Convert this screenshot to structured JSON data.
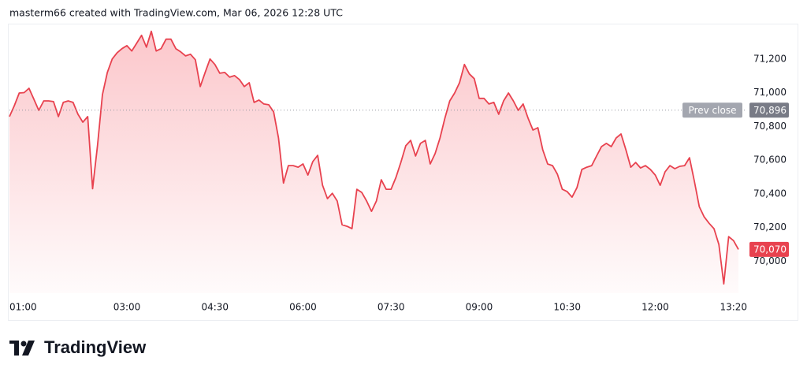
{
  "header": "masterm66 created with TradingView.com, Mar 06, 2026 12:28 UTC",
  "brand": "TradingView",
  "chart_data": {
    "type": "area",
    "color": "#e8424f",
    "x": [
      "01:00",
      "01:05",
      "01:10",
      "01:15",
      "01:20",
      "01:25",
      "01:30",
      "01:35",
      "01:40",
      "01:45",
      "01:50",
      "01:55",
      "02:00",
      "02:05",
      "02:10",
      "02:15",
      "02:20",
      "02:25",
      "02:30",
      "02:35",
      "02:40",
      "02:45",
      "02:50",
      "02:55",
      "03:00",
      "03:05",
      "03:10",
      "03:15",
      "03:20",
      "03:25",
      "03:30",
      "03:35",
      "03:40",
      "03:45",
      "03:50",
      "03:55",
      "04:00",
      "04:05",
      "04:10",
      "04:15",
      "04:20",
      "04:25",
      "04:30",
      "04:35",
      "04:40",
      "04:45",
      "04:50",
      "04:55",
      "05:00",
      "05:05",
      "05:10",
      "05:15",
      "05:20",
      "05:25",
      "05:30",
      "05:35",
      "05:40",
      "05:45",
      "05:50",
      "05:55",
      "06:00",
      "06:05",
      "06:10",
      "06:15",
      "06:20",
      "06:25",
      "06:30",
      "06:35",
      "06:40",
      "06:45",
      "06:50",
      "06:55",
      "07:00",
      "07:05",
      "07:10",
      "07:15",
      "07:20",
      "07:25",
      "07:30",
      "07:35",
      "07:40",
      "07:45",
      "07:50",
      "07:55",
      "08:00",
      "08:05",
      "08:10",
      "08:15",
      "08:20",
      "08:25",
      "08:30",
      "08:35",
      "08:40",
      "08:45",
      "08:50",
      "08:55",
      "09:00",
      "09:05",
      "09:10",
      "09:15",
      "09:20",
      "09:25",
      "09:30",
      "09:35",
      "09:40",
      "09:45",
      "09:50",
      "09:55",
      "10:00",
      "10:05",
      "10:10",
      "10:15",
      "10:20",
      "10:25",
      "10:30",
      "10:35",
      "10:40",
      "10:45",
      "10:50",
      "10:55",
      "11:00",
      "11:05",
      "11:10",
      "11:15",
      "11:20",
      "11:25",
      "11:30",
      "11:35",
      "11:40",
      "11:45",
      "11:50",
      "11:55",
      "12:00",
      "12:05",
      "12:10",
      "12:15",
      "12:20",
      "12:25",
      "12:30",
      "12:35",
      "12:40",
      "12:45",
      "12:50",
      "12:55",
      "13:00",
      "13:05",
      "13:10",
      "13:15",
      "13:20",
      "13:25"
    ],
    "values": [
      70858,
      70923,
      70998,
      71000,
      71026,
      70961,
      70895,
      70951,
      70951,
      70947,
      70858,
      70942,
      70951,
      70942,
      70872,
      70825,
      70858,
      70430,
      70685,
      70989,
      71120,
      71200,
      71237,
      71261,
      71279,
      71247,
      71293,
      71340,
      71270,
      71364,
      71247,
      71261,
      71317,
      71317,
      71261,
      71242,
      71218,
      71228,
      71195,
      71036,
      71120,
      71200,
      71167,
      71115,
      71120,
      71092,
      71101,
      71078,
      71036,
      71059,
      70942,
      70956,
      70933,
      70928,
      70886,
      70731,
      70464,
      70567,
      70567,
      70558,
      70577,
      70511,
      70591,
      70628,
      70450,
      70371,
      70403,
      70357,
      70216,
      70207,
      70193,
      70427,
      70408,
      70357,
      70296,
      70357,
      70483,
      70427,
      70427,
      70497,
      70586,
      70685,
      70717,
      70624,
      70699,
      70717,
      70577,
      70638,
      70731,
      70848,
      70951,
      70998,
      71059,
      71167,
      71111,
      71083,
      70966,
      70966,
      70933,
      70942,
      70872,
      70951,
      70998,
      70951,
      70895,
      70933,
      70848,
      70778,
      70792,
      70661,
      70577,
      70567,
      70516,
      70427,
      70413,
      70380,
      70436,
      70544,
      70558,
      70567,
      70624,
      70680,
      70699,
      70680,
      70731,
      70755,
      70661,
      70558,
      70586,
      70553,
      70567,
      70544,
      70511,
      70450,
      70530,
      70567,
      70549,
      70563,
      70567,
      70614,
      70474,
      70324,
      70263,
      70225,
      70193,
      70099,
      69865,
      70146,
      70122,
      70070
    ],
    "xticks": [
      "01:00",
      "03:00",
      "04:30",
      "06:00",
      "07:30",
      "09:00",
      "10:30",
      "12:00",
      "13:20"
    ],
    "ylim": [
      69810,
      71400
    ],
    "yticks": [
      {
        "value": 70000,
        "label": "70,000"
      },
      {
        "value": 70200,
        "label": "70,200"
      },
      {
        "value": 70400,
        "label": "70,400"
      },
      {
        "value": 70600,
        "label": "70,600"
      },
      {
        "value": 70800,
        "label": "70,800"
      },
      {
        "value": 71000,
        "label": "71,000"
      },
      {
        "value": 71200,
        "label": "71,200"
      }
    ],
    "grid": false,
    "prev_close": {
      "label": "Prev close",
      "value": 70896,
      "value_label": "70,896"
    },
    "last_price": {
      "value": 70070,
      "label": "70,070"
    }
  }
}
